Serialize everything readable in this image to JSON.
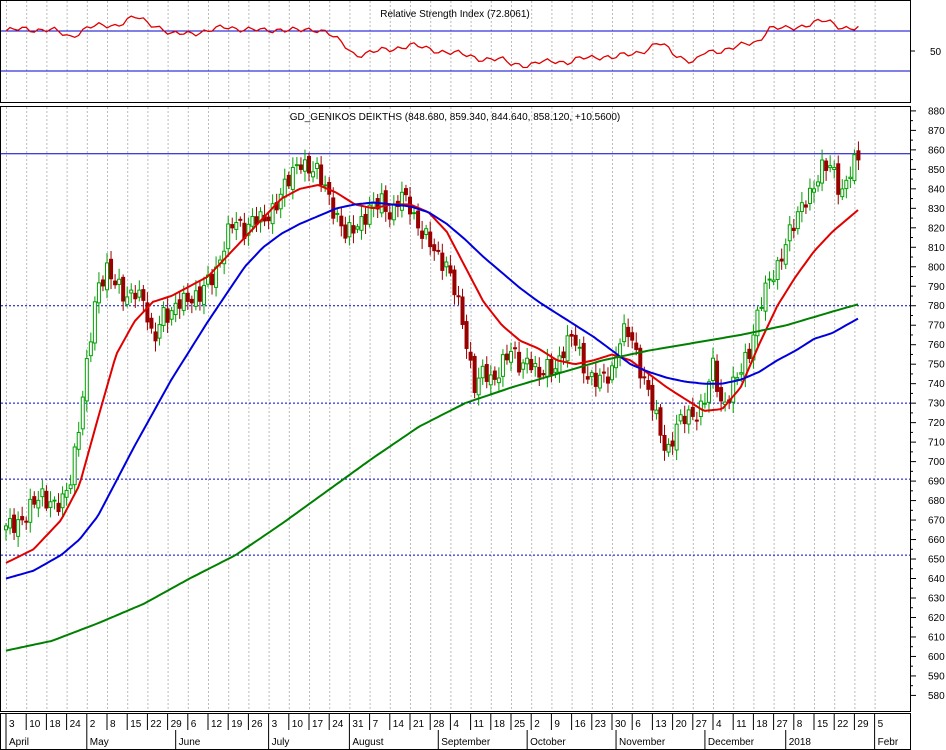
{
  "chart_data": [
    {
      "type": "line",
      "title": "Relative Strength Index (72.8061)",
      "ylim": [
        0,
        100
      ],
      "ticks": [
        {
          "value": 50,
          "label": "50"
        }
      ],
      "reference_lines": [
        70,
        30
      ],
      "colors": {
        "rsi": "#e00000",
        "reference": "#0000cc"
      },
      "rsi_keypoints": [
        [
          0,
          70
        ],
        [
          2,
          72
        ],
        [
          5,
          71
        ],
        [
          7,
          64
        ],
        [
          9,
          74
        ],
        [
          12,
          76
        ],
        [
          14,
          84
        ],
        [
          15,
          80
        ],
        [
          17,
          73
        ],
        [
          18,
          66
        ],
        [
          20,
          68
        ],
        [
          22,
          70
        ],
        [
          24,
          74
        ],
        [
          26,
          72
        ],
        [
          28,
          70
        ],
        [
          30,
          72
        ],
        [
          32,
          70
        ],
        [
          34,
          72
        ],
        [
          35,
          69
        ],
        [
          37,
          54
        ],
        [
          38,
          46
        ],
        [
          40,
          49
        ],
        [
          42,
          52
        ],
        [
          44,
          56
        ],
        [
          46,
          52
        ],
        [
          48,
          49
        ],
        [
          50,
          46
        ],
        [
          52,
          42
        ],
        [
          54,
          41
        ],
        [
          55,
          38
        ],
        [
          56,
          37
        ],
        [
          57,
          35
        ],
        [
          58,
          38
        ],
        [
          60,
          41
        ],
        [
          61,
          38
        ],
        [
          63,
          43
        ],
        [
          65,
          45
        ],
        [
          66,
          43
        ],
        [
          68,
          47
        ],
        [
          70,
          52
        ],
        [
          71,
          58
        ],
        [
          72,
          53
        ],
        [
          73,
          46
        ],
        [
          74,
          42
        ],
        [
          75,
          38
        ],
        [
          76,
          48
        ],
        [
          78,
          51
        ],
        [
          80,
          55
        ],
        [
          82,
          60
        ],
        [
          83,
          73
        ],
        [
          85,
          72
        ],
        [
          87,
          76
        ],
        [
          89,
          80
        ],
        [
          90,
          78
        ],
        [
          91,
          74
        ],
        [
          93,
          72
        ]
      ]
    },
    {
      "type": "candlestick",
      "title": "GD_GENIKOS DEIKTHS (848.680, 859.340, 844.640, 858.120, +10.5600)",
      "ylim": [
        572,
        882
      ],
      "y_ticks": [
        580,
        590,
        600,
        610,
        620,
        630,
        640,
        650,
        660,
        670,
        680,
        690,
        700,
        710,
        720,
        730,
        740,
        750,
        760,
        770,
        780,
        790,
        800,
        810,
        820,
        830,
        840,
        850,
        860,
        870,
        880
      ],
      "reference_lines": [
        {
          "value": 858,
          "style": "solid"
        },
        {
          "value": 780,
          "style": "dotted"
        },
        {
          "value": 730,
          "style": "dotted"
        },
        {
          "value": 691,
          "style": "dotted"
        },
        {
          "value": 652,
          "style": "dotted"
        }
      ],
      "close_keypoints": [
        [
          0,
          665
        ],
        [
          2,
          672
        ],
        [
          4,
          683
        ],
        [
          6,
          676
        ],
        [
          7,
          690
        ],
        [
          8,
          722
        ],
        [
          9,
          755
        ],
        [
          10,
          790
        ],
        [
          11,
          800
        ],
        [
          12,
          790
        ],
        [
          13,
          783
        ],
        [
          14,
          790
        ],
        [
          15,
          781
        ],
        [
          16,
          760
        ],
        [
          17,
          778
        ],
        [
          18,
          774
        ],
        [
          19,
          782
        ],
        [
          20,
          786
        ],
        [
          21,
          783
        ],
        [
          22,
          792
        ],
        [
          23,
          800
        ],
        [
          24,
          815
        ],
        [
          25,
          823
        ],
        [
          26,
          820
        ],
        [
          27,
          825
        ],
        [
          28,
          822
        ],
        [
          29,
          830
        ],
        [
          30,
          838
        ],
        [
          31,
          845
        ],
        [
          32,
          856
        ],
        [
          33,
          850
        ],
        [
          34,
          847
        ],
        [
          35,
          840
        ],
        [
          36,
          825
        ],
        [
          37,
          815
        ],
        [
          38,
          822
        ],
        [
          39,
          825
        ],
        [
          40,
          830
        ],
        [
          41,
          835
        ],
        [
          42,
          826
        ],
        [
          43,
          836
        ],
        [
          44,
          832
        ],
        [
          45,
          820
        ],
        [
          46,
          812
        ],
        [
          47,
          806
        ],
        [
          48,
          802
        ],
        [
          49,
          785
        ],
        [
          50,
          765
        ],
        [
          51,
          740
        ],
        [
          52,
          745
        ],
        [
          53,
          740
        ],
        [
          54,
          752
        ],
        [
          55,
          756
        ],
        [
          56,
          748
        ],
        [
          57,
          755
        ],
        [
          58,
          742
        ],
        [
          59,
          748
        ],
        [
          60,
          750
        ],
        [
          61,
          760
        ],
        [
          62,
          763
        ],
        [
          63,
          748
        ],
        [
          64,
          740
        ],
        [
          65,
          742
        ],
        [
          66,
          748
        ],
        [
          67,
          765
        ],
        [
          68,
          765
        ],
        [
          69,
          750
        ],
        [
          70,
          735
        ],
        [
          71,
          718
        ],
        [
          72,
          705
        ],
        [
          73,
          718
        ],
        [
          74,
          722
        ],
        [
          75,
          725
        ],
        [
          76,
          730
        ],
        [
          77,
          748
        ],
        [
          78,
          728
        ],
        [
          79,
          738
        ],
        [
          80,
          745
        ],
        [
          81,
          758
        ],
        [
          82,
          780
        ],
        [
          83,
          790
        ],
        [
          84,
          800
        ],
        [
          85,
          815
        ],
        [
          86,
          822
        ],
        [
          87,
          835
        ],
        [
          88,
          842
        ],
        [
          89,
          850
        ],
        [
          90,
          852
        ],
        [
          91,
          838
        ],
        [
          92,
          848
        ],
        [
          93,
          858
        ]
      ],
      "moving_averages": [
        {
          "color": "#e00000",
          "points": [
            [
              0,
              648
            ],
            [
              3,
              655
            ],
            [
              6,
              670
            ],
            [
              8,
              688
            ],
            [
              10,
              722
            ],
            [
              12,
              755
            ],
            [
              14,
              772
            ],
            [
              16,
              782
            ],
            [
              18,
              785
            ],
            [
              20,
              790
            ],
            [
              22,
              795
            ],
            [
              24,
              805
            ],
            [
              26,
              815
            ],
            [
              28,
              825
            ],
            [
              30,
              835
            ],
            [
              32,
              840
            ],
            [
              34,
              842
            ],
            [
              36,
              838
            ],
            [
              38,
              832
            ],
            [
              40,
              830
            ],
            [
              42,
              832
            ],
            [
              44,
              832
            ],
            [
              46,
              828
            ],
            [
              48,
              818
            ],
            [
              50,
              800
            ],
            [
              52,
              782
            ],
            [
              54,
              770
            ],
            [
              56,
              762
            ],
            [
              58,
              758
            ],
            [
              60,
              752
            ],
            [
              62,
              750
            ],
            [
              64,
              752
            ],
            [
              66,
              755
            ],
            [
              68,
              752
            ],
            [
              70,
              745
            ],
            [
              72,
              738
            ],
            [
              74,
              732
            ],
            [
              76,
              726
            ],
            [
              78,
              727
            ],
            [
              80,
              738
            ],
            [
              82,
              760
            ],
            [
              84,
              780
            ],
            [
              86,
              795
            ],
            [
              88,
              808
            ],
            [
              90,
              818
            ],
            [
              93,
              830
            ]
          ]
        },
        {
          "color": "#0000dd",
          "points": [
            [
              0,
              640
            ],
            [
              3,
              644
            ],
            [
              6,
              652
            ],
            [
              8,
              660
            ],
            [
              10,
              672
            ],
            [
              12,
              690
            ],
            [
              14,
              708
            ],
            [
              16,
              725
            ],
            [
              18,
              742
            ],
            [
              20,
              757
            ],
            [
              22,
              772
            ],
            [
              24,
              786
            ],
            [
              26,
              800
            ],
            [
              28,
              810
            ],
            [
              30,
              817
            ],
            [
              32,
              822
            ],
            [
              34,
              826
            ],
            [
              36,
              830
            ],
            [
              38,
              832
            ],
            [
              40,
              833
            ],
            [
              42,
              832
            ],
            [
              44,
              831
            ],
            [
              46,
              828
            ],
            [
              48,
              822
            ],
            [
              50,
              814
            ],
            [
              52,
              805
            ],
            [
              54,
              797
            ],
            [
              56,
              789
            ],
            [
              58,
              782
            ],
            [
              60,
              776
            ],
            [
              62,
              770
            ],
            [
              64,
              764
            ],
            [
              66,
              757
            ],
            [
              68,
              750
            ],
            [
              70,
              746
            ],
            [
              72,
              743
            ],
            [
              74,
              741
            ],
            [
              76,
              740
            ],
            [
              78,
              740
            ],
            [
              80,
              742
            ],
            [
              82,
              746
            ],
            [
              84,
              752
            ],
            [
              86,
              757
            ],
            [
              88,
              763
            ],
            [
              90,
              766
            ],
            [
              93,
              774
            ]
          ]
        },
        {
          "color": "#008000",
          "points": [
            [
              0,
              603
            ],
            [
              5,
              608
            ],
            [
              10,
              617
            ],
            [
              15,
              627
            ],
            [
              20,
              640
            ],
            [
              25,
              652
            ],
            [
              30,
              668
            ],
            [
              35,
              685
            ],
            [
              40,
              702
            ],
            [
              45,
              718
            ],
            [
              50,
              730
            ],
            [
              55,
              738
            ],
            [
              60,
              745
            ],
            [
              65,
              752
            ],
            [
              70,
              757
            ],
            [
              75,
              761
            ],
            [
              80,
              765
            ],
            [
              85,
              770
            ],
            [
              90,
              777
            ],
            [
              93,
              781
            ]
          ]
        }
      ],
      "colors": {
        "up": "#00a000",
        "down": "#990000"
      }
    }
  ],
  "x_axis": {
    "day_labels": [
      {
        "i": 0,
        "t": "3"
      },
      {
        "i": 5,
        "t": "10"
      },
      {
        "i": 10,
        "t": "18"
      },
      {
        "i": 15,
        "t": "24"
      },
      {
        "i": 20,
        "t": "2"
      },
      {
        "i": 25,
        "t": "8"
      },
      {
        "i": 30,
        "t": "15"
      },
      {
        "i": 35,
        "t": "22"
      },
      {
        "i": 40,
        "t": "29"
      },
      {
        "i": 45,
        "t": "6"
      },
      {
        "i": 50,
        "t": "12"
      },
      {
        "i": 55,
        "t": "19"
      },
      {
        "i": 60,
        "t": "26"
      },
      {
        "i": 65,
        "t": "3"
      },
      {
        "i": 70,
        "t": "10"
      },
      {
        "i": 75,
        "t": "17"
      },
      {
        "i": 80,
        "t": "24"
      },
      {
        "i": 85,
        "t": "31"
      },
      {
        "i": 90,
        "t": "7"
      },
      {
        "i": 95,
        "t": "14"
      },
      {
        "i": 100,
        "t": "21"
      },
      {
        "i": 105,
        "t": "28"
      },
      {
        "i": 110,
        "t": "4"
      },
      {
        "i": 115,
        "t": "11"
      },
      {
        "i": 120,
        "t": "18"
      },
      {
        "i": 125,
        "t": "25"
      },
      {
        "i": 130,
        "t": "2"
      },
      {
        "i": 135,
        "t": "9"
      },
      {
        "i": 140,
        "t": "16"
      },
      {
        "i": 145,
        "t": "23"
      },
      {
        "i": 150,
        "t": "30"
      },
      {
        "i": 155,
        "t": "6"
      },
      {
        "i": 160,
        "t": "13"
      },
      {
        "i": 165,
        "t": "20"
      },
      {
        "i": 170,
        "t": "27"
      },
      {
        "i": 175,
        "t": "4"
      },
      {
        "i": 180,
        "t": "11"
      },
      {
        "i": 185,
        "t": "18"
      },
      {
        "i": 190,
        "t": "27"
      },
      {
        "i": 195,
        "t": "8"
      },
      {
        "i": 200,
        "t": "15"
      },
      {
        "i": 205,
        "t": "22"
      },
      {
        "i": 210,
        "t": "29"
      },
      {
        "i": 215,
        "t": "5"
      }
    ],
    "months": [
      {
        "i": 0,
        "t": "April"
      },
      {
        "i": 20,
        "t": "May"
      },
      {
        "i": 42,
        "t": "June"
      },
      {
        "i": 65,
        "t": "July"
      },
      {
        "i": 85,
        "t": "August"
      },
      {
        "i": 107,
        "t": "September"
      },
      {
        "i": 129,
        "t": "October"
      },
      {
        "i": 151,
        "t": "November"
      },
      {
        "i": 173,
        "t": "December"
      },
      {
        "i": 193,
        "t": "2018"
      },
      {
        "i": 215,
        "t": "Febr"
      }
    ]
  }
}
